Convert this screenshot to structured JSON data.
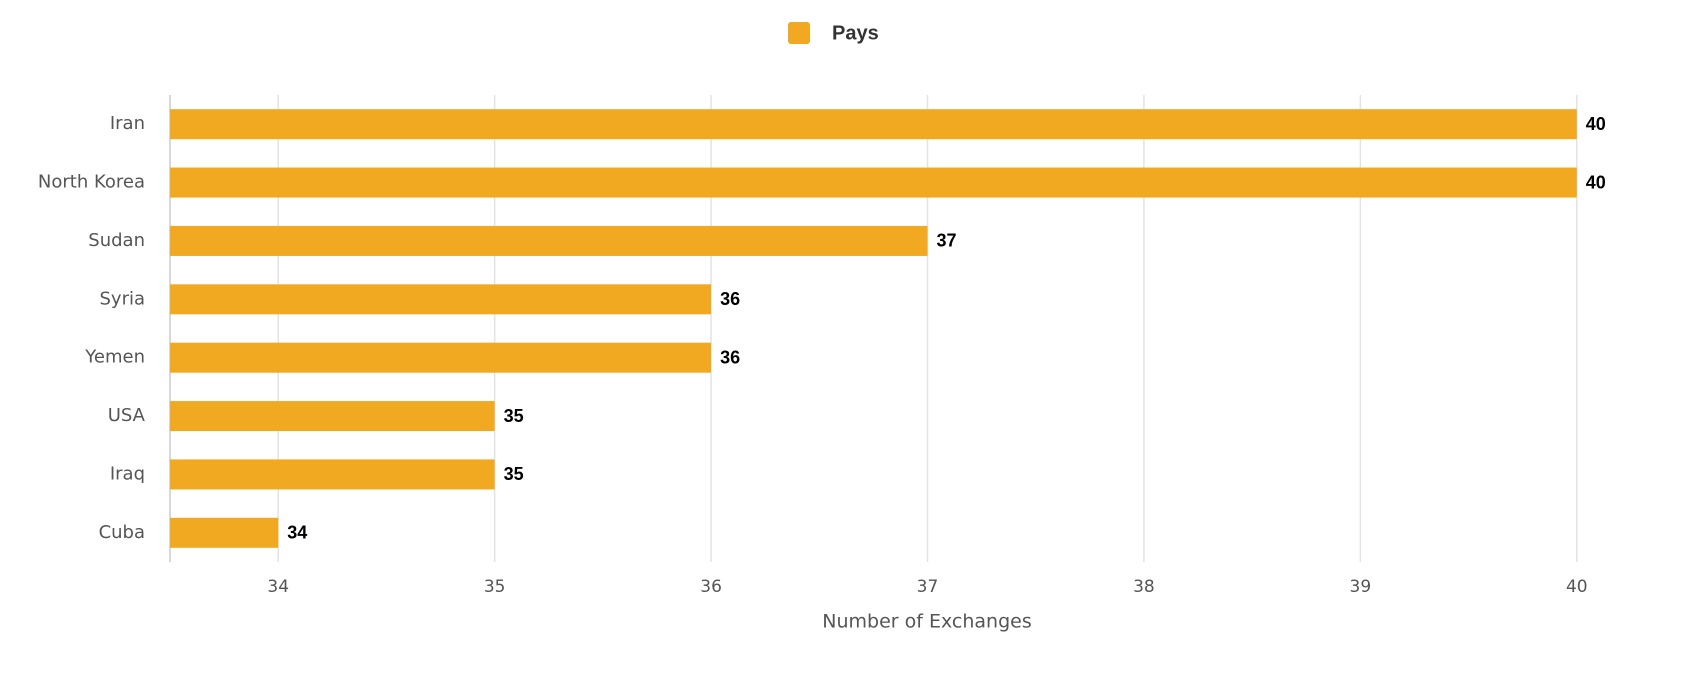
{
  "chart_data": {
    "type": "bar",
    "orientation": "horizontal",
    "series": [
      {
        "name": "Pays",
        "color": "#f0a920",
        "values": [
          40,
          40,
          37,
          36,
          36,
          35,
          35,
          34
        ]
      }
    ],
    "categories": [
      "Iran",
      "North Korea",
      "Sudan",
      "Syria",
      "Yemen",
      "USA",
      "Iraq",
      "Cuba"
    ],
    "xlabel": "Number of Exchanges",
    "xlim": [
      33.5,
      40.5
    ],
    "xticks": [
      34,
      35,
      36,
      37,
      38,
      39,
      40
    ],
    "grid": true,
    "legend": "top"
  }
}
